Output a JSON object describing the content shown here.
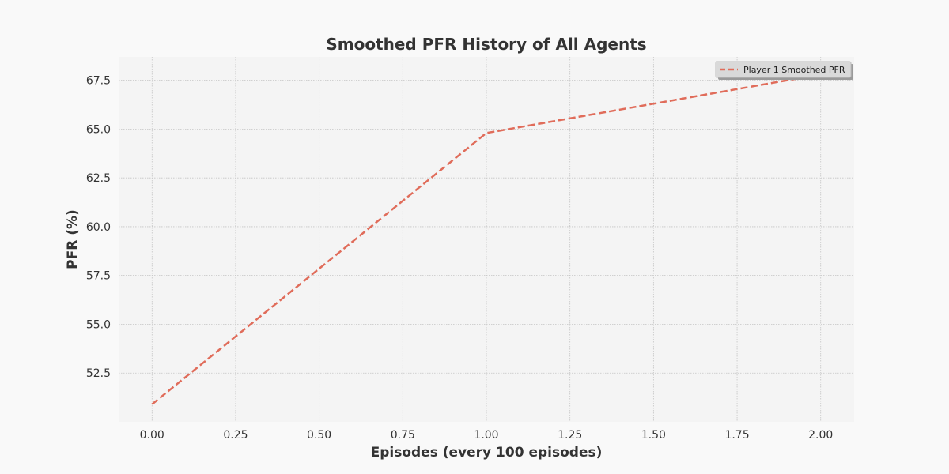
{
  "chart_data": {
    "type": "line",
    "title": "Smoothed PFR History of All Agents",
    "xlabel": "Episodes (every 100 episodes)",
    "ylabel": "PFR (%)",
    "xlim": [
      -0.1,
      2.1
    ],
    "ylim": [
      50.0,
      68.7
    ],
    "x_ticks": [
      0.0,
      0.25,
      0.5,
      0.75,
      1.0,
      1.25,
      1.5,
      1.75,
      2.0
    ],
    "x_tick_labels": [
      "0.00",
      "0.25",
      "0.50",
      "0.75",
      "1.00",
      "1.25",
      "1.50",
      "1.75",
      "2.00"
    ],
    "y_ticks": [
      52.5,
      55.0,
      57.5,
      60.0,
      62.5,
      65.0,
      67.5
    ],
    "y_tick_labels": [
      "52.5",
      "55.0",
      "57.5",
      "60.0",
      "62.5",
      "65.0",
      "67.5"
    ],
    "grid": true,
    "legend_position": "top-right",
    "series": [
      {
        "name": "Player 1 Smoothed PFR",
        "color": "#e06c5a",
        "line_style": "dashed",
        "x": [
          0,
          1,
          2
        ],
        "y": [
          50.9,
          64.8,
          67.8
        ]
      }
    ]
  }
}
